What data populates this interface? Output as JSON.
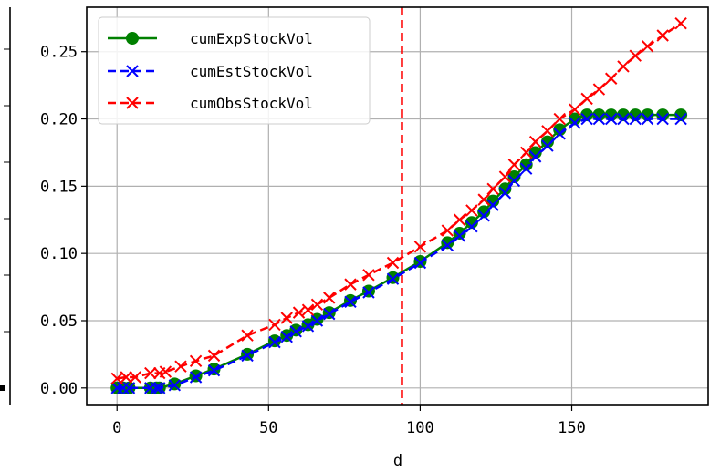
{
  "chart_data": {
    "type": "line",
    "title": "",
    "xlabel": "d",
    "ylabel": "",
    "xlim": [
      -10,
      195
    ],
    "ylim": [
      -0.013,
      0.283
    ],
    "x_ticks": [
      0,
      50,
      100,
      150
    ],
    "y_ticks": [
      0.0,
      0.05,
      0.1,
      0.15,
      0.2,
      0.25
    ],
    "y_tick_labels": [
      "0.00",
      "0.05",
      "0.10",
      "0.15",
      "0.20",
      "0.25"
    ],
    "grid": true,
    "legend_position": "top-left",
    "vertical_line": {
      "x": 94,
      "color": "#ff0000",
      "style": "dashed"
    },
    "series": [
      {
        "name": "cumExpStockVol",
        "color": "#008000",
        "marker": "circle",
        "line": "solid",
        "x": [
          0,
          2,
          4,
          11,
          13,
          14,
          19,
          26,
          32,
          43,
          52,
          56,
          59,
          63,
          66,
          70,
          77,
          83,
          91,
          100,
          109,
          113,
          117,
          121,
          124,
          128,
          131,
          135,
          138,
          142,
          146,
          151,
          155,
          159,
          163,
          167,
          171,
          175,
          180,
          186
        ],
        "y": [
          0.0,
          0.0,
          0.0,
          0.0,
          0.0,
          0.0,
          0.003,
          0.009,
          0.014,
          0.025,
          0.035,
          0.039,
          0.043,
          0.047,
          0.051,
          0.056,
          0.065,
          0.072,
          0.082,
          0.094,
          0.108,
          0.115,
          0.123,
          0.131,
          0.139,
          0.148,
          0.157,
          0.166,
          0.175,
          0.183,
          0.192,
          0.2,
          0.203,
          0.203,
          0.203,
          0.203,
          0.203,
          0.203,
          0.203,
          0.203
        ]
      },
      {
        "name": "cumEstStockVol",
        "color": "#0000ff",
        "marker": "x",
        "line": "dashed",
        "x": [
          0,
          2,
          4,
          11,
          13,
          14,
          19,
          26,
          32,
          43,
          52,
          56,
          59,
          63,
          66,
          70,
          77,
          83,
          91,
          100,
          109,
          113,
          117,
          121,
          124,
          128,
          131,
          135,
          138,
          142,
          146,
          151,
          155,
          159,
          163,
          167,
          171,
          175,
          180,
          186
        ],
        "y": [
          0.0,
          0.0,
          0.0,
          0.0,
          0.0,
          0.0,
          0.002,
          0.008,
          0.013,
          0.024,
          0.034,
          0.038,
          0.042,
          0.046,
          0.05,
          0.055,
          0.064,
          0.071,
          0.081,
          0.093,
          0.106,
          0.113,
          0.12,
          0.128,
          0.136,
          0.145,
          0.154,
          0.163,
          0.172,
          0.18,
          0.189,
          0.197,
          0.2,
          0.2,
          0.2,
          0.2,
          0.2,
          0.2,
          0.2,
          0.2
        ]
      },
      {
        "name": "cumObsStockVol",
        "color": "#ff0000",
        "marker": "x",
        "line": "dashed",
        "x": [
          0,
          3,
          6,
          11,
          14,
          16,
          21,
          26,
          32,
          43,
          52,
          56,
          60,
          63,
          66,
          70,
          77,
          83,
          91,
          100,
          109,
          113,
          117,
          121,
          124,
          128,
          131,
          135,
          138,
          142,
          146,
          151,
          155,
          159,
          163,
          167,
          171,
          175,
          180,
          186
        ],
        "y": [
          0.007,
          0.008,
          0.008,
          0.011,
          0.011,
          0.012,
          0.016,
          0.02,
          0.024,
          0.039,
          0.047,
          0.052,
          0.056,
          0.058,
          0.062,
          0.067,
          0.077,
          0.084,
          0.093,
          0.105,
          0.117,
          0.125,
          0.132,
          0.14,
          0.148,
          0.157,
          0.166,
          0.175,
          0.183,
          0.191,
          0.2,
          0.207,
          0.215,
          0.222,
          0.23,
          0.239,
          0.247,
          0.254,
          0.262,
          0.271
        ]
      }
    ]
  }
}
